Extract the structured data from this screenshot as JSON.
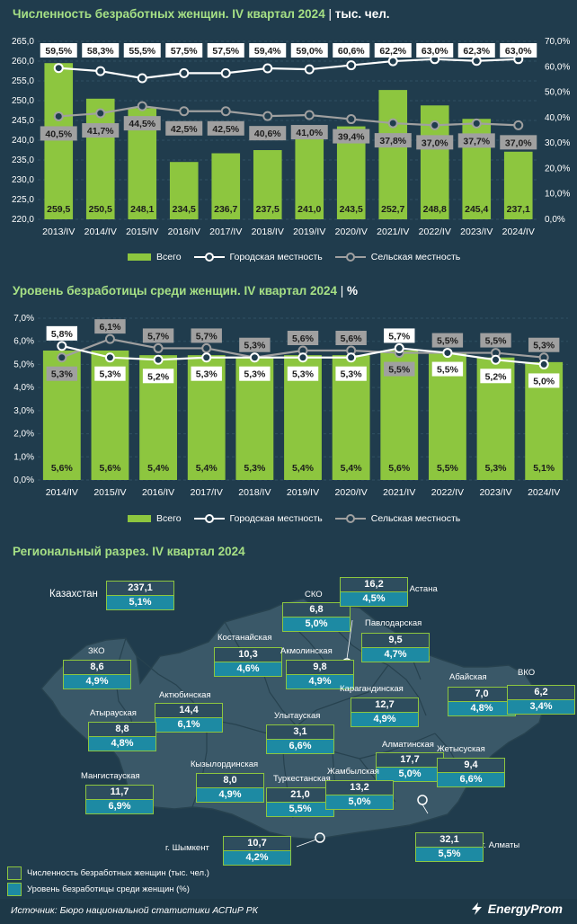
{
  "chart_data": [
    {
      "type": "bar",
      "title": "Численность безработных женщин. IV квартал 2024",
      "unit": "тыс. чел.",
      "categories": [
        "2013/IV",
        "2014/IV",
        "2015/IV",
        "2016/IV",
        "2017/IV",
        "2018/IV",
        "2019/IV",
        "2020/IV",
        "2021/IV",
        "2022/IV",
        "2023/IV",
        "2024/IV"
      ],
      "series": [
        {
          "name": "Всего",
          "type": "bar",
          "axis": "left",
          "values": [
            259.5,
            250.5,
            248.1,
            234.5,
            236.7,
            237.5,
            241.0,
            243.5,
            252.7,
            248.8,
            245.4,
            237.1
          ],
          "labels": [
            "259,5",
            "250,5",
            "248,1",
            "234,5",
            "236,7",
            "237,5",
            "241,0",
            "243,5",
            "252,7",
            "248,8",
            "245,4",
            "237,1"
          ]
        },
        {
          "name": "Городская местность",
          "type": "line",
          "axis": "right",
          "values": [
            59.5,
            58.3,
            55.5,
            57.5,
            57.5,
            59.4,
            59.0,
            60.6,
            62.2,
            63.0,
            62.3,
            63.0
          ],
          "labels": [
            "59,5%",
            "58,3%",
            "55,5%",
            "57,5%",
            "57,5%",
            "59,4%",
            "59,0%",
            "60,6%",
            "62,2%",
            "63,0%",
            "62,3%",
            "63,0%"
          ]
        },
        {
          "name": "Сельская местность",
          "type": "line",
          "axis": "right",
          "values": [
            40.5,
            41.7,
            44.5,
            42.5,
            42.5,
            40.6,
            41.0,
            39.4,
            37.8,
            37.0,
            37.7,
            37.0
          ],
          "labels": [
            "40,5%",
            "41,7%",
            "44,5%",
            "42,5%",
            "42,5%",
            "40,6%",
            "41,0%",
            "39,4%",
            "37,8%",
            "37,0%",
            "37,7%",
            "37,0%"
          ]
        }
      ],
      "ylim": [
        220,
        265
      ],
      "yticks": [
        "220,0",
        "225,0",
        "230,0",
        "235,0",
        "240,0",
        "245,0",
        "250,0",
        "255,0",
        "260,0",
        "265,0"
      ],
      "y2lim": [
        0,
        70
      ],
      "y2ticks": [
        "0,0%",
        "10,0%",
        "20,0%",
        "30,0%",
        "40,0%",
        "50,0%",
        "60,0%",
        "70,0%"
      ],
      "legend": "bottom"
    },
    {
      "type": "bar",
      "title": "Уровень безработицы среди женщин. IV квартал 2024",
      "unit": "%",
      "categories": [
        "2014/IV",
        "2015/IV",
        "2016/IV",
        "2017/IV",
        "2018/IV",
        "2019/IV",
        "2020/IV",
        "2021/IV",
        "2022/IV",
        "2023/IV",
        "2024/IV"
      ],
      "series": [
        {
          "name": "Всего",
          "type": "bar",
          "values": [
            5.6,
            5.6,
            5.4,
            5.4,
            5.3,
            5.4,
            5.4,
            5.6,
            5.5,
            5.3,
            5.1
          ],
          "labels": [
            "5,6%",
            "5,6%",
            "5,4%",
            "5,4%",
            "5,3%",
            "5,4%",
            "5,4%",
            "5,6%",
            "5,5%",
            "5,3%",
            "5,1%"
          ]
        },
        {
          "name": "Городская местность",
          "type": "line",
          "values": [
            5.8,
            5.3,
            5.2,
            5.3,
            5.3,
            5.3,
            5.3,
            5.7,
            5.5,
            5.2,
            5.0
          ],
          "labels": [
            "5,8%",
            "5,3%",
            "5,2%",
            "5,3%",
            "5,3%",
            "5,3%",
            "5,3%",
            "5,7%",
            "5,5%",
            "5,2%",
            "5,0%"
          ]
        },
        {
          "name": "Сельская местность",
          "type": "line",
          "values": [
            5.3,
            6.1,
            5.7,
            5.7,
            5.3,
            5.6,
            5.6,
            5.5,
            5.5,
            5.5,
            5.3
          ],
          "labels": [
            "5,3%",
            "6,1%",
            "5,7%",
            "5,7%",
            "5,3%",
            "5,6%",
            "5,6%",
            "5,5%",
            "5,5%",
            "5,5%",
            "5,3%"
          ]
        }
      ],
      "ylim": [
        0,
        7
      ],
      "yticks": [
        "0,0%",
        "1,0%",
        "2,0%",
        "3,0%",
        "4,0%",
        "5,0%",
        "6,0%",
        "7,0%"
      ],
      "legend": "bottom"
    }
  ],
  "legend": {
    "total": "Всего",
    "urban": "Городская местность",
    "rural": "Сельская местность"
  },
  "map": {
    "title": "Региональный разрез. IV квартал 2024",
    "country_label": "Казахстан",
    "country": {
      "count": "237,1",
      "rate": "5,1%"
    },
    "regions": [
      {
        "name": "СКО",
        "count": "6,8",
        "rate": "5,0%"
      },
      {
        "name": "г. Астана",
        "count": "16,2",
        "rate": "4,5%"
      },
      {
        "name": "Павлодарская",
        "count": "9,5",
        "rate": "4,7%"
      },
      {
        "name": "Костанайская",
        "count": "10,3",
        "rate": "4,6%"
      },
      {
        "name": "Акмолинская",
        "count": "9,8",
        "rate": "4,9%"
      },
      {
        "name": "ЗКО",
        "count": "8,6",
        "rate": "4,9%"
      },
      {
        "name": "Абайская",
        "count": "7,0",
        "rate": "4,8%"
      },
      {
        "name": "ВКО",
        "count": "6,2",
        "rate": "3,4%"
      },
      {
        "name": "Актюбинская",
        "count": "14,4",
        "rate": "6,1%"
      },
      {
        "name": "Карагандинская",
        "count": "12,7",
        "rate": "4,9%"
      },
      {
        "name": "Атырауская",
        "count": "8,8",
        "rate": "4,8%"
      },
      {
        "name": "Улытауская",
        "count": "3,1",
        "rate": "6,6%"
      },
      {
        "name": "Алматинская",
        "count": "17,7",
        "rate": "5,0%"
      },
      {
        "name": "Жетысуская",
        "count": "9,4",
        "rate": "6,6%"
      },
      {
        "name": "Кызылординская",
        "count": "8,0",
        "rate": "4,9%"
      },
      {
        "name": "Мангистауская",
        "count": "11,7",
        "rate": "6,9%"
      },
      {
        "name": "Туркестанская",
        "count": "21,0",
        "rate": "5,5%"
      },
      {
        "name": "Жамбылская",
        "count": "13,2",
        "rate": "5,0%"
      },
      {
        "name": "г. Шымкент",
        "count": "10,7",
        "rate": "4,2%"
      },
      {
        "name": "г. Алматы",
        "count": "32,1",
        "rate": "5,5%"
      }
    ],
    "legend_count": "Численность безработных женщин (тыс. чел.)",
    "legend_rate": "Уровень безработицы среди женщин (%)"
  },
  "source": "Источник: Бюро национальной статистики АСПиР РК",
  "brand": "EnergyProm",
  "colors": {
    "bg": "#203c4d",
    "bar": "#8dc63f",
    "title": "#a6e085",
    "rural": "#a0a0a0",
    "urban": "#ffffff",
    "rate_box": "#1d8aa3",
    "map_fill": "#3a5868"
  }
}
